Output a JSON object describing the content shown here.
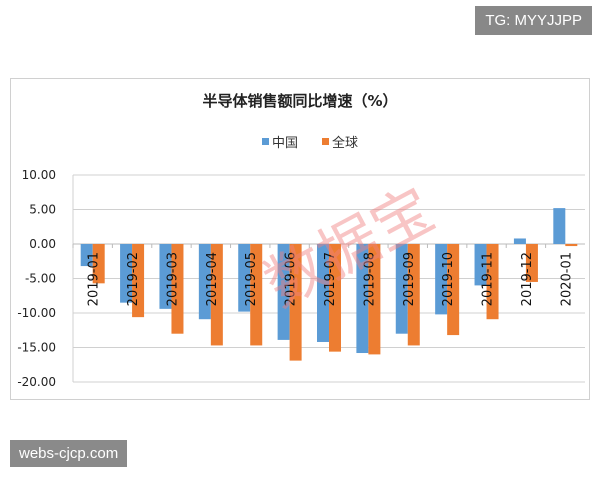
{
  "badge_tg": "TG: MYYJJPP",
  "badge_site": "webs-cjcp.com",
  "watermark": "数据宝",
  "chart_data": {
    "type": "bar",
    "title": "半导体销售额同比增速（%）",
    "legend_position": "top",
    "grid": true,
    "ylim": [
      -20,
      10
    ],
    "yticks": [
      "10.00",
      "5.00",
      "0.00",
      "-5.00",
      "-10.00",
      "-15.00",
      "-20.00"
    ],
    "categories": [
      "2019-01",
      "2019-02",
      "2019-03",
      "2019-04",
      "2019-05",
      "2019-06",
      "2019-07",
      "2019-08",
      "2019-09",
      "2019-10",
      "2019-11",
      "2019-12",
      "2020-01"
    ],
    "series": [
      {
        "name": "中国",
        "color": "#5b9bd5",
        "values": [
          -3.2,
          -8.5,
          -9.4,
          -10.9,
          -9.8,
          -13.9,
          -14.2,
          -15.8,
          -13.0,
          -10.2,
          -6.0,
          0.8,
          5.2
        ]
      },
      {
        "name": "全球",
        "color": "#ed7d31",
        "values": [
          -5.7,
          -10.6,
          -13.0,
          -14.7,
          -14.7,
          -16.9,
          -15.6,
          -16.0,
          -14.7,
          -13.2,
          -10.9,
          -5.5,
          -0.3
        ]
      }
    ]
  }
}
